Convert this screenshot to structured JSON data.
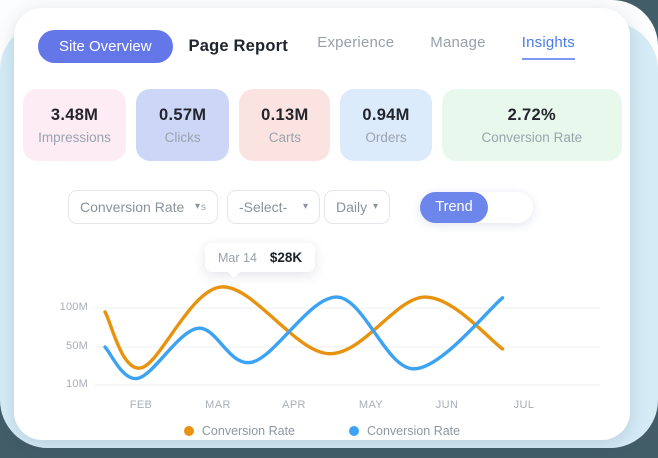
{
  "header": {
    "primary_button": "Site Overview",
    "secondary_title": "Page Report",
    "tabs": [
      {
        "label": "Experience",
        "active": false
      },
      {
        "label": "Manage",
        "active": false
      },
      {
        "label": "Insights",
        "active": true
      }
    ],
    "accent_color": "#6477e9",
    "active_tab_color": "#4a7be8"
  },
  "stats": [
    {
      "value": "3.48M",
      "label": "Impressions",
      "bg": "#fdecf4"
    },
    {
      "value": "0.57M",
      "label": "Clicks",
      "bg": "#ccd7f7"
    },
    {
      "value": "0.13M",
      "label": "Carts",
      "bg": "#fbe3e2"
    },
    {
      "value": "0.94M",
      "label": "Orders",
      "bg": "#dcebfb"
    },
    {
      "value": "2.72%",
      "label": "Conversion Rate",
      "bg": "#e9f8ec"
    }
  ],
  "controls": {
    "metric_dropdown": {
      "value": "Conversion Rate",
      "caret": "▾",
      "caret_suffix": "s"
    },
    "compare_dropdown": {
      "value": "-Select-",
      "caret": "▾"
    },
    "interval_dropdown": {
      "value": "Daily",
      "caret": "▾"
    },
    "trend_toggle": {
      "label": "Trend",
      "active": true,
      "color": "#6d86ec"
    }
  },
  "chart_data": {
    "type": "line",
    "title": "",
    "x_axis": {
      "labels": [
        "FEB",
        "MAR",
        "APR",
        "MAY",
        "JUN",
        "JUL"
      ]
    },
    "y_axis": {
      "tick_labels": [
        "100M",
        "50M",
        "10M"
      ],
      "tick_values": [
        100,
        50,
        10
      ],
      "unit": "M"
    },
    "point_format": "[month_position (2=FEB ... 7=JUL), value_in_millions]",
    "series": [
      {
        "name": "Conversion Rate",
        "color": "#E8930F",
        "points": [
          [
            1.53,
            95
          ],
          [
            2.0,
            28
          ],
          [
            3.05,
            127
          ],
          [
            4.45,
            43
          ],
          [
            5.7,
            114
          ],
          [
            6.72,
            48
          ]
        ]
      },
      {
        "name": "Conversion Rate",
        "color": "#3BA2F4",
        "points": [
          [
            1.53,
            50
          ],
          [
            1.96,
            17
          ],
          [
            2.74,
            74
          ],
          [
            3.45,
            34
          ],
          [
            4.56,
            114
          ],
          [
            5.56,
            27
          ],
          [
            6.72,
            113
          ]
        ]
      }
    ],
    "tooltip": {
      "date": "Mar 14",
      "value": "$28K"
    },
    "grid": "horizontal-only",
    "legend_position": "bottom-center"
  },
  "colors": {
    "page_background": "#425d68",
    "sheet_blue": "#d5ecf7",
    "card_background": "#ffffff"
  }
}
